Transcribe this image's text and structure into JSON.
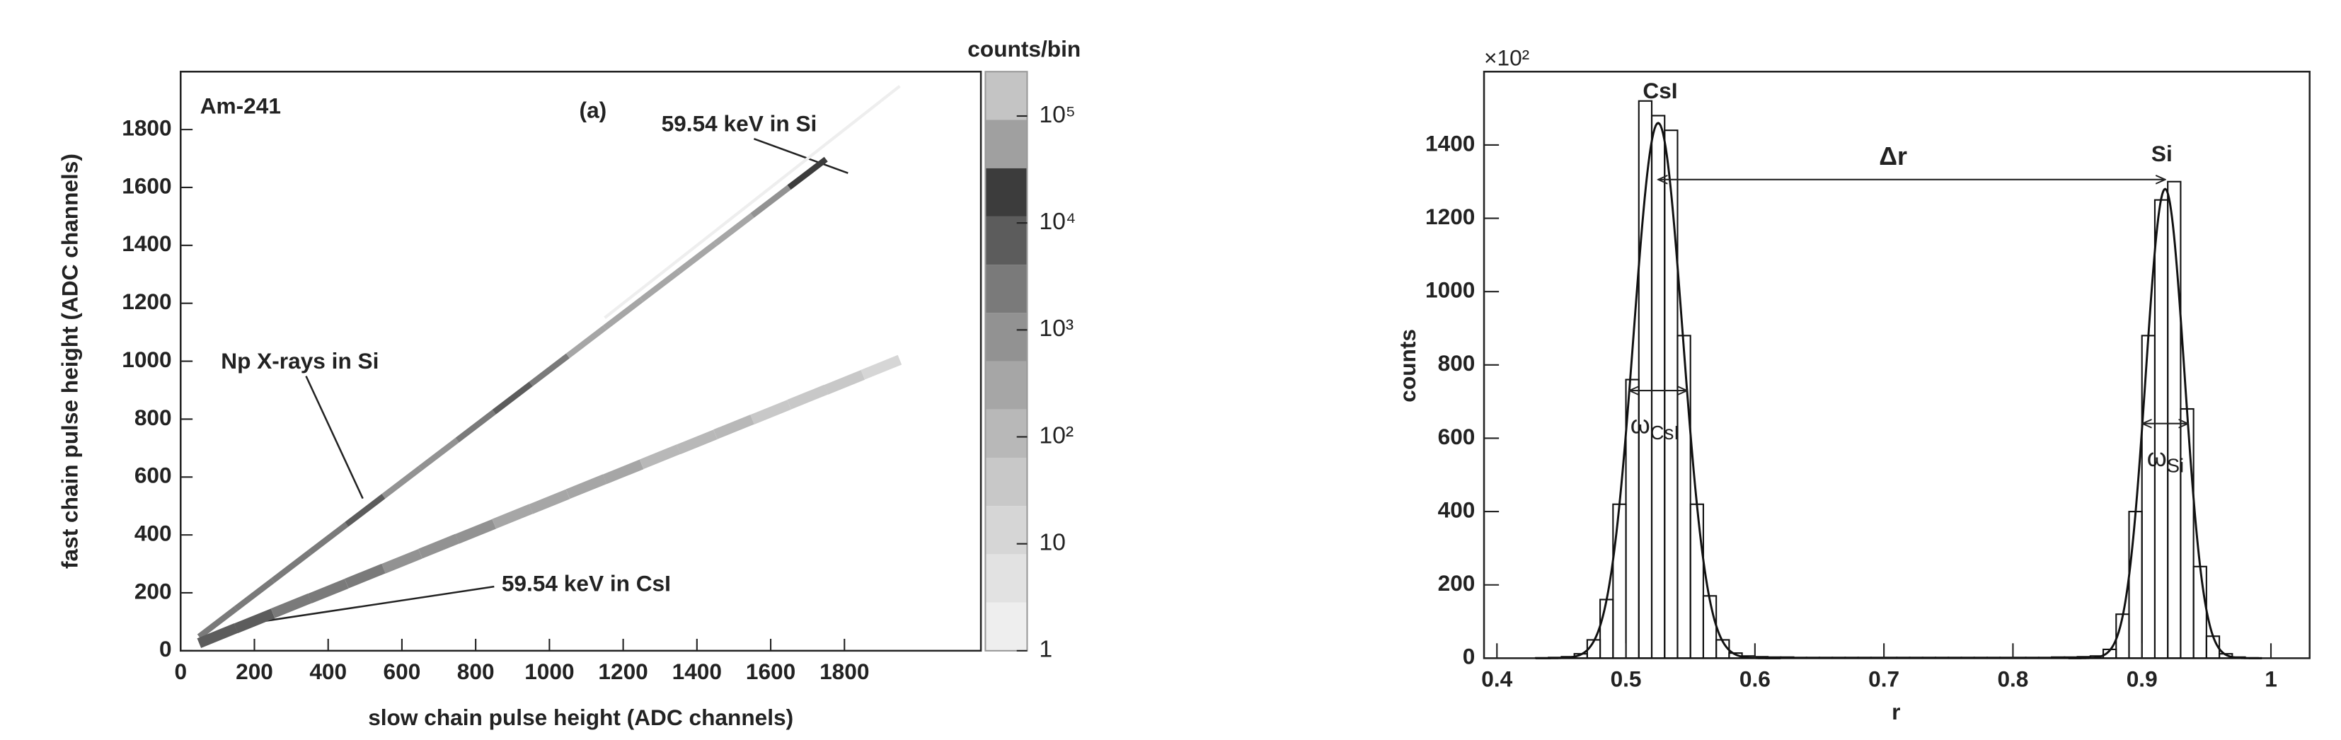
{
  "chart_data": [
    {
      "type": "hist2d",
      "xlabel": "slow chain pulse height (ADC channels)",
      "ylabel": "fast chain pulse height (ADC channels)",
      "xlim": [
        0,
        2170
      ],
      "ylim": [
        0,
        2000
      ],
      "xticks": [
        0,
        200,
        400,
        600,
        800,
        1000,
        1200,
        1400,
        1600,
        1800
      ],
      "yticks": [
        0,
        200,
        400,
        600,
        800,
        1000,
        1200,
        1400,
        1600,
        1800
      ],
      "bands": [
        {
          "x": [
            100,
            200,
            300,
            400,
            500,
            600,
            700,
            800,
            900,
            1000,
            1100,
            1200,
            1300,
            1400,
            1500,
            1600,
            1700
          ],
          "y": [
            97,
            194,
            291,
            388,
            485,
            582,
            679,
            776,
            873,
            970,
            1067,
            1164,
            1261,
            1358,
            1455,
            1552,
            1649
          ],
          "counts": [
            3000,
            2000,
            1500,
            3000,
            8000,
            800,
            600,
            2000,
            5000,
            1500,
            300,
            200,
            200,
            300,
            300,
            1000,
            20000
          ]
        },
        {
          "x": [
            100,
            200,
            300,
            400,
            500,
            600,
            700,
            800,
            900,
            1000,
            1100,
            1200,
            1300,
            1400,
            1500,
            1600,
            1700,
            1800,
            1900
          ],
          "y": [
            52,
            103,
            155,
            206,
            258,
            309,
            361,
            412,
            464,
            515,
            567,
            618,
            670,
            721,
            773,
            824,
            876,
            927,
            979
          ],
          "counts": [
            8000,
            5000,
            3000,
            2000,
            1500,
            1000,
            800,
            600,
            500,
            400,
            300,
            200,
            150,
            100,
            80,
            60,
            40,
            30,
            20
          ]
        },
        {
          "x": [
            1200,
            1300,
            1400,
            1500,
            1600,
            1700,
            1800,
            1900
          ],
          "y": [
            1200,
            1300,
            1400,
            1500,
            1600,
            1700,
            1800,
            1900
          ],
          "counts": [
            2,
            2,
            2,
            2,
            2,
            2,
            2,
            2
          ]
        }
      ],
      "colorbar": {
        "title": "counts/bin",
        "log": true,
        "zlim": [
          1,
          260000
        ],
        "ticks": [
          1,
          10,
          {
            "value": 100,
            "label": "10²"
          },
          {
            "value": 1000,
            "label": "10³"
          },
          {
            "value": 10000,
            "label": "10⁴"
          },
          {
            "value": 100000,
            "label": "10⁵"
          }
        ],
        "palette": [
          "#eeeeee",
          "#e2e2e2",
          "#d6d6d6",
          "#c8c8c8",
          "#b8b8b8",
          "#a6a6a6",
          "#929292",
          "#7a7a7a",
          "#5c5c5c",
          "#3c3c3c",
          "#a0a0a0",
          "#c4c4c4"
        ]
      },
      "annotations": [
        "Am-241",
        "(a)",
        "59.54 keV in Si",
        "Np X-rays in Si",
        "59.54 keV in CsI"
      ]
    },
    {
      "type": "histogram",
      "multiplier": "×10²",
      "xlabel": "r",
      "ylabel": "counts",
      "xlim": [
        0.39,
        1.03
      ],
      "ylim": [
        0,
        1600
      ],
      "xticks": [
        0.4,
        0.5,
        0.6,
        0.7,
        0.8,
        0.9,
        1
      ],
      "yticks": [
        0,
        200,
        400,
        600,
        800,
        1000,
        1200,
        1400
      ],
      "color": "#111111",
      "bins": [
        0.4,
        0.41,
        0.42,
        0.43,
        0.44,
        0.45,
        0.46,
        0.47,
        0.48,
        0.49,
        0.5,
        0.51,
        0.52,
        0.53,
        0.54,
        0.55,
        0.56,
        0.57,
        0.58,
        0.59,
        0.6,
        0.61,
        0.62,
        0.63,
        0.64,
        0.65,
        0.66,
        0.67,
        0.68,
        0.69,
        0.7,
        0.71,
        0.72,
        0.73,
        0.74,
        0.75,
        0.76,
        0.77,
        0.78,
        0.79,
        0.8,
        0.81,
        0.82,
        0.83,
        0.84,
        0.85,
        0.86,
        0.87,
        0.88,
        0.89,
        0.9,
        0.91,
        0.92,
        0.93,
        0.94,
        0.95,
        0.96,
        0.97,
        0.98,
        0.99,
        1.0
      ],
      "counts": [
        0,
        0,
        0,
        1,
        2,
        4,
        12,
        50,
        160,
        420,
        760,
        1520,
        1480,
        1440,
        880,
        420,
        170,
        50,
        14,
        6,
        4,
        3,
        3,
        2,
        2,
        2,
        2,
        2,
        2,
        2,
        2,
        2,
        2,
        2,
        2,
        2,
        2,
        2,
        2,
        2,
        2,
        2,
        2,
        3,
        3,
        4,
        6,
        24,
        120,
        400,
        880,
        1250,
        1300,
        680,
        250,
        60,
        12,
        3,
        1,
        0
      ],
      "fits": [
        {
          "amplitude": 1460,
          "mean": 0.525,
          "sigma": 0.019
        },
        {
          "amplitude": 1280,
          "mean": 0.918,
          "sigma": 0.015
        }
      ],
      "annotations": {
        "csi": "CsI",
        "si": "Si",
        "delta": "Δr",
        "omega_csi": {
          "symbol": "ω",
          "sub": "CsI"
        },
        "omega_si": {
          "symbol": "ω",
          "sub": "Si"
        }
      }
    }
  ]
}
